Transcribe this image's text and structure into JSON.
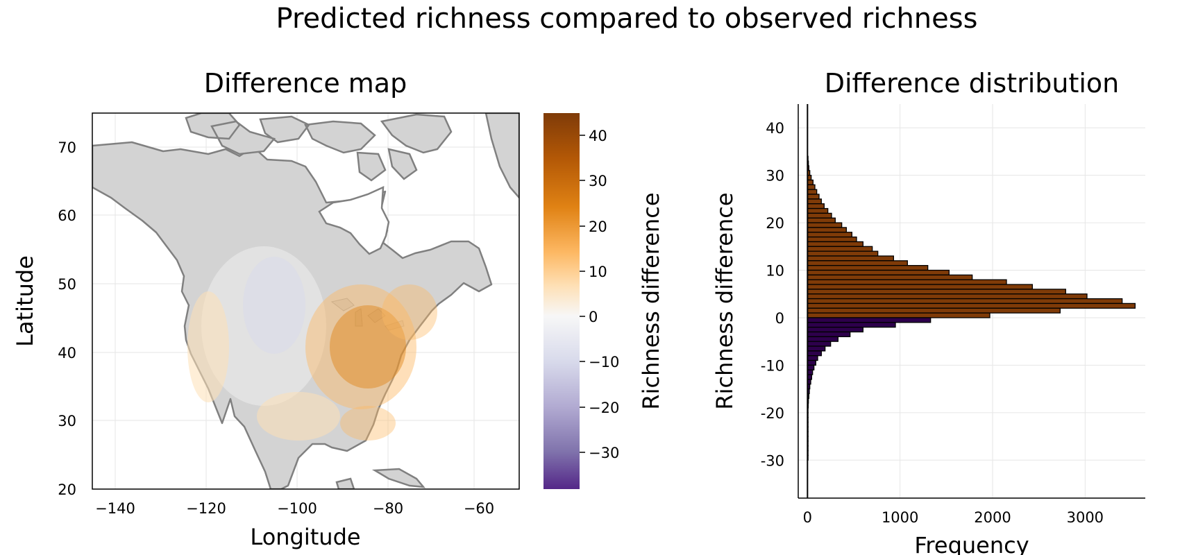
{
  "figure": {
    "title": "Predicted richness compared to observed richness"
  },
  "map_panel": {
    "title": "Difference map",
    "xlabel": "Longitude",
    "ylabel": "Latitude",
    "x_ticks": [
      "−140",
      "−120",
      "−100",
      "−80",
      "−60"
    ],
    "y_ticks": [
      "20",
      "30",
      "40",
      "50",
      "60",
      "70"
    ],
    "land_color": "#d3d3d3",
    "coast_color": "#808080"
  },
  "colorbar": {
    "label": "Richness difference",
    "ticks": [
      "40",
      "30",
      "20",
      "10",
      "0",
      "−10",
      "−20",
      "−30"
    ],
    "colors": [
      "#7f3b08",
      "#b35806",
      "#e08214",
      "#fdb863",
      "#fee0b6",
      "#f7f7f7",
      "#d8daeb",
      "#b2abd2",
      "#8073ac",
      "#542788"
    ]
  },
  "chart_data": [
    {
      "type": "heatmap",
      "title": "Difference map",
      "xlabel": "Longitude",
      "ylabel": "Latitude",
      "xlim": [
        -145,
        -50
      ],
      "ylim": [
        20,
        75
      ],
      "colorbar_label": "Richness difference",
      "colorbar_range": [
        -38,
        45
      ]
    },
    {
      "type": "bar",
      "orientation": "horizontal",
      "title": "Difference distribution",
      "xlabel": "Frequency",
      "ylabel": "Richness difference",
      "xlim": [
        -100,
        3650
      ],
      "ylim": [
        -38,
        45
      ],
      "x_ticks": [
        "0",
        "1000",
        "2000",
        "3000"
      ],
      "y_ticks": [
        "40",
        "30",
        "20",
        "10",
        "0",
        "-10",
        "-20",
        "-30"
      ],
      "bin_width": 1,
      "positive_color": "#7f3b08",
      "negative_color": "#2d004b",
      "bins": [
        {
          "y": 33,
          "count": 5
        },
        {
          "y": 32,
          "count": 10
        },
        {
          "y": 31,
          "count": 15
        },
        {
          "y": 30,
          "count": 25
        },
        {
          "y": 29,
          "count": 40
        },
        {
          "y": 28,
          "count": 60
        },
        {
          "y": 27,
          "count": 80
        },
        {
          "y": 26,
          "count": 100
        },
        {
          "y": 25,
          "count": 125
        },
        {
          "y": 24,
          "count": 150
        },
        {
          "y": 23,
          "count": 180
        },
        {
          "y": 22,
          "count": 220
        },
        {
          "y": 21,
          "count": 260
        },
        {
          "y": 20,
          "count": 300
        },
        {
          "y": 19,
          "count": 370
        },
        {
          "y": 18,
          "count": 420
        },
        {
          "y": 17,
          "count": 480
        },
        {
          "y": 16,
          "count": 530
        },
        {
          "y": 15,
          "count": 600
        },
        {
          "y": 14,
          "count": 700
        },
        {
          "y": 13,
          "count": 760
        },
        {
          "y": 12,
          "count": 930
        },
        {
          "y": 11,
          "count": 1080
        },
        {
          "y": 10,
          "count": 1300
        },
        {
          "y": 9,
          "count": 1530
        },
        {
          "y": 8,
          "count": 1780
        },
        {
          "y": 7,
          "count": 2150
        },
        {
          "y": 6,
          "count": 2430
        },
        {
          "y": 5,
          "count": 2790
        },
        {
          "y": 4,
          "count": 3020
        },
        {
          "y": 3,
          "count": 3400
        },
        {
          "y": 2,
          "count": 3540
        },
        {
          "y": 1,
          "count": 2730
        },
        {
          "y": 0,
          "count": 1970
        },
        {
          "y": -1,
          "count": 1330
        },
        {
          "y": -2,
          "count": 950
        },
        {
          "y": -3,
          "count": 600
        },
        {
          "y": -4,
          "count": 460
        },
        {
          "y": -5,
          "count": 330
        },
        {
          "y": -6,
          "count": 250
        },
        {
          "y": -7,
          "count": 190
        },
        {
          "y": -8,
          "count": 150
        },
        {
          "y": -9,
          "count": 110
        },
        {
          "y": -10,
          "count": 90
        },
        {
          "y": -11,
          "count": 70
        },
        {
          "y": -12,
          "count": 55
        },
        {
          "y": -13,
          "count": 45
        },
        {
          "y": -14,
          "count": 35
        },
        {
          "y": -15,
          "count": 25
        },
        {
          "y": -16,
          "count": 20
        },
        {
          "y": -17,
          "count": 15
        },
        {
          "y": -18,
          "count": 10
        },
        {
          "y": -19,
          "count": 8
        },
        {
          "y": -20,
          "count": 5
        },
        {
          "y": -21,
          "count": 4
        },
        {
          "y": -22,
          "count": 3
        },
        {
          "y": -23,
          "count": 2
        },
        {
          "y": -24,
          "count": 2
        },
        {
          "y": -25,
          "count": 1
        },
        {
          "y": -26,
          "count": 1
        },
        {
          "y": -27,
          "count": 1
        },
        {
          "y": -28,
          "count": 1
        },
        {
          "y": -29,
          "count": 1
        },
        {
          "y": -30,
          "count": 1
        }
      ]
    }
  ],
  "histogram_panel": {
    "title": "Difference distribution",
    "xlabel": "Frequency",
    "ylabel": "Richness difference",
    "x_ticks": [
      "0",
      "1000",
      "2000",
      "3000"
    ],
    "y_ticks": [
      "40",
      "30",
      "20",
      "10",
      "0",
      "-10",
      "-20",
      "-30"
    ]
  }
}
